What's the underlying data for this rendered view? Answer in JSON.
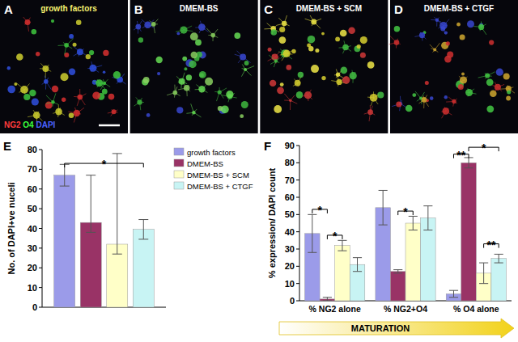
{
  "panels": [
    {
      "letter": "A",
      "label": "growth factors"
    },
    {
      "letter": "B",
      "label": "DMEM-BS"
    },
    {
      "letter": "C",
      "label": "DMEM-BS + SCM"
    },
    {
      "letter": "D",
      "label": "DMEM-BS + CTGF"
    }
  ],
  "stain_legend": [
    {
      "text": "NG2",
      "color": "#ff3b3b"
    },
    {
      "text": "O4",
      "color": "#3bff3b"
    },
    {
      "text": "DAPI",
      "color": "#4a63ff"
    }
  ],
  "chart_data": [
    {
      "type": "bar",
      "title": "E",
      "ylabel": "No. of DAPI+ve nuceli",
      "categories": [
        null
      ],
      "series": [
        {
          "name": "growth factors",
          "color": "#9b9be9",
          "values": [
            67
          ],
          "error_plus": [
            5.5
          ],
          "error_minus": [
            5.5
          ]
        },
        {
          "name": "DMEM-BS",
          "color": "#993366",
          "values": [
            43
          ],
          "error_plus": [
            24
          ],
          "error_minus": [
            5
          ]
        },
        {
          "name": "DMEM-BS + SCM",
          "color": "#ffffc8",
          "values": [
            32
          ],
          "error_plus": [
            46
          ],
          "error_minus": [
            5
          ]
        },
        {
          "name": "DMEM-BS + CTGF",
          "color": "#c8f4f4",
          "values": [
            39.5
          ],
          "error_plus": [
            5
          ],
          "error_minus": [
            5
          ]
        }
      ],
      "ylim": [
        0,
        80
      ],
      "yticks": [
        0,
        10,
        20,
        30,
        40,
        50,
        60,
        70,
        80
      ],
      "legend": "top-right",
      "significance": [
        {
          "label": "*",
          "category": 0,
          "from": 0,
          "to": 3,
          "level": 73
        }
      ]
    },
    {
      "type": "bar",
      "title": "F",
      "ylabel": "% expression/ DAPI count",
      "xlabel": "MATURATION",
      "categories": [
        "% NG2 alone",
        "% NG2+O4",
        "% O4 alone"
      ],
      "series": [
        {
          "name": "growth factors",
          "color": "#9b9be9",
          "values": [
            39,
            54,
            4
          ],
          "error_plus": [
            11,
            10,
            2
          ],
          "error_minus": [
            11,
            10,
            2
          ]
        },
        {
          "name": "DMEM-BS",
          "color": "#993366",
          "values": [
            1,
            17,
            80
          ],
          "error_plus": [
            1,
            1,
            3
          ],
          "error_minus": [
            1,
            1,
            3
          ]
        },
        {
          "name": "DMEM-BS + SCM",
          "color": "#ffffc8",
          "values": [
            32,
            45,
            16
          ],
          "error_plus": [
            3,
            4,
            6
          ],
          "error_minus": [
            3,
            4,
            6
          ]
        },
        {
          "name": "DMEM-BS + CTGF",
          "color": "#c8f4f4",
          "values": [
            21,
            48,
            24.5
          ],
          "error_plus": [
            4,
            7,
            2.5
          ],
          "error_minus": [
            4,
            7,
            2.5
          ]
        }
      ],
      "ylim": [
        0,
        90
      ],
      "yticks": [
        0,
        10,
        20,
        30,
        40,
        50,
        60,
        70,
        80,
        90
      ],
      "significance": [
        {
          "label": "*",
          "category": 0,
          "from": 0,
          "to": 1,
          "level": 53
        },
        {
          "label": "*",
          "category": 0,
          "from": 1,
          "to": 2,
          "level": 38
        },
        {
          "label": "*",
          "category": 1,
          "from": 1,
          "to": 2,
          "level": 52
        },
        {
          "label": "**",
          "category": 2,
          "from": 0,
          "to": 1,
          "level": 85
        },
        {
          "label": "*",
          "category": 2,
          "from": 1,
          "to": 3,
          "level": 89
        },
        {
          "label": "**",
          "category": 2,
          "from": 2,
          "to": 3,
          "level": 33
        }
      ]
    }
  ]
}
